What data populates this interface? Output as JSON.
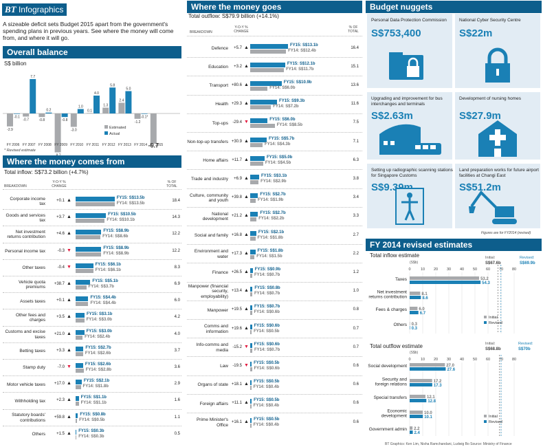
{
  "logo": {
    "brand": "BT",
    "label": "Infographics"
  },
  "intro": "A sizeable deficit sets Budget 2015 apart from the government's spending plans in previous years. See where the money will come from, and where it will go.",
  "overall": {
    "title": "Overall balance",
    "unit": "S$ billion",
    "note": "* Revised estimate",
    "legend": [
      "Estimated",
      "Actual"
    ]
  },
  "comes": {
    "title": "Where the money comes from",
    "total": "Total inflow: S$73.2 billion (+4.7%)",
    "headers": [
      "BREAKDOWN",
      "Y-O-Y % CHANGE",
      "% OF TOTAL"
    ],
    "rows": [
      {
        "label": "Corporate income tax",
        "chg": "+0.1",
        "dir": "up",
        "fy15": 13.5,
        "fy14": 13.5,
        "t15": "FY15: S$13.5b",
        "t14": "FY14: S$13.5b",
        "pct": "18.4"
      },
      {
        "label": "Goods and services tax",
        "chg": "+3.7",
        "dir": "up",
        "fy15": 10.5,
        "fy14": 10.1,
        "t15": "FY15: S$10.5b",
        "t14": "FY14: S$10.1b",
        "pct": "14.3"
      },
      {
        "label": "Net investment returns contribution",
        "chg": "+4.6",
        "dir": "up",
        "fy15": 8.9,
        "fy14": 8.6,
        "t15": "FY15: S$8.9b",
        "t14": "FY14: S$8.6b",
        "pct": "12.2"
      },
      {
        "label": "Personal income tax",
        "chg": "-0.3",
        "dir": "down",
        "fy15": 8.9,
        "fy14": 8.9,
        "t15": "FY15: S$8.9b",
        "t14": "FY14: S$8.9b",
        "pct": "12.2"
      },
      {
        "label": "Other taxes",
        "chg": "-0.4",
        "dir": "down",
        "fy15": 6.1,
        "fy14": 6.1,
        "t15": "FY15: S$6.1b",
        "t14": "FY14: S$6.1b",
        "pct": "8.3"
      },
      {
        "label": "Vehicle quota premiums",
        "chg": "+38.7",
        "dir": "up",
        "fy15": 5.1,
        "fy14": 3.7,
        "t15": "FY15: S$5.1b",
        "t14": "FY14: S$3.7b",
        "pct": "6.9"
      },
      {
        "label": "Assets taxes",
        "chg": "+0.1",
        "dir": "up",
        "fy15": 4.4,
        "fy14": 4.4,
        "t15": "FY15: S$4.4b",
        "t14": "FY14: S$4.4b",
        "pct": "6.0"
      },
      {
        "label": "Other fees and charges",
        "chg": "+3.5",
        "dir": "up",
        "fy15": 3.1,
        "fy14": 3.0,
        "t15": "FY15: S$3.1b",
        "t14": "FY14: S$3.0b",
        "pct": "4.2"
      },
      {
        "label": "Customs and excise taxes",
        "chg": "+21.0",
        "dir": "up",
        "fy15": 3.0,
        "fy14": 2.4,
        "t15": "FY15: S$3.0b",
        "t14": "FY14: S$2.4b",
        "pct": "4.0"
      },
      {
        "label": "Betting taxes",
        "chg": "+3.3",
        "dir": "up",
        "fy15": 2.7,
        "fy14": 2.6,
        "t15": "FY15: S$2.7b",
        "t14": "FY14: S$2.6b",
        "pct": "3.7"
      },
      {
        "label": "Stamp duty",
        "chg": "-7.0",
        "dir": "down",
        "fy15": 2.6,
        "fy14": 2.8,
        "t15": "FY15: S$2.6b",
        "t14": "FY14: S$2.8b",
        "pct": "3.6"
      },
      {
        "label": "Motor vehicle taxes",
        "chg": "+17.0",
        "dir": "up",
        "fy15": 2.1,
        "fy14": 1.8,
        "t15": "FY15: S$2.1b",
        "t14": "FY14: S$1.8b",
        "pct": "2.9"
      },
      {
        "label": "Withholding tax",
        "chg": "+2.3",
        "dir": "up",
        "fy15": 1.1,
        "fy14": 1.1,
        "t15": "FY15: S$1.1b",
        "t14": "FY14: S$1.1b",
        "pct": "1.6"
      },
      {
        "label": "Statutory boards' contributions",
        "chg": "+59.8",
        "dir": "up",
        "fy15": 0.8,
        "fy14": 0.5,
        "t15": "FY15: S$0.8b",
        "t14": "FY14: S$0.5b",
        "pct": "1.1"
      },
      {
        "label": "Others",
        "chg": "+1.5",
        "dir": "up",
        "fy15": 0.3,
        "fy14": 0.3,
        "t15": "FY15: S$0.3b",
        "t14": "FY14: S$0.3b",
        "pct": "0.5"
      }
    ]
  },
  "goes": {
    "title": "Where the money goes",
    "total": "Total outflow: S$79.9 billion (+14.1%)",
    "headers": [
      "BREAKDOWN",
      "Y-O-Y % CHANGE",
      "% OF TOTAL"
    ],
    "rows": [
      {
        "label": "Defence",
        "chg": "+5.7",
        "dir": "up",
        "fy15": 13.1,
        "fy14": 12.4,
        "t15": "FY15: S$13.1b",
        "t14": "FY14: S$12.4b",
        "pct": "16.4"
      },
      {
        "label": "Education",
        "chg": "+3.2",
        "dir": "up",
        "fy15": 12.1,
        "fy14": 11.7,
        "t15": "FY15: S$12.1b",
        "t14": "FY14: S$11.7b",
        "pct": "15.1"
      },
      {
        "label": "Transport",
        "chg": "+80.6",
        "dir": "up",
        "fy15": 10.9,
        "fy14": 6.0,
        "t15": "FY15: S$10.9b",
        "t14": "FY14: S$6.0b",
        "pct": "13.6"
      },
      {
        "label": "Health",
        "chg": "+29.3",
        "dir": "up",
        "fy15": 9.3,
        "fy14": 7.2,
        "t15": "FY15: S$9.3b",
        "t14": "FY14: S$7.2b",
        "pct": "11.6"
      },
      {
        "label": "Top-ups",
        "chg": "-29.4",
        "dir": "down",
        "fy15": 6.0,
        "fy14": 8.5,
        "t15": "FY15: S$6.0b",
        "t14": "FY14: S$8.5b",
        "pct": "7.5"
      },
      {
        "label": "Non-top-up transfers",
        "chg": "+30.9",
        "dir": "up",
        "fy15": 5.7,
        "fy14": 4.3,
        "t15": "FY15: S$5.7b",
        "t14": "FY14: S$4.3b",
        "pct": "7.1"
      },
      {
        "label": "Home affairs",
        "chg": "+11.7",
        "dir": "up",
        "fy15": 5.0,
        "fy14": 4.5,
        "t15": "FY15: S$5.0b",
        "t14": "FY14: S$4.5b",
        "pct": "6.3"
      },
      {
        "label": "Trade and industry",
        "chg": "+6.9",
        "dir": "up",
        "fy15": 3.1,
        "fy14": 2.9,
        "t15": "FY15: S$3.1b",
        "t14": "FY14: S$2.9b",
        "pct": "3.8"
      },
      {
        "label": "Culture, community and youth",
        "chg": "+39.8",
        "dir": "up",
        "fy15": 2.7,
        "fy14": 1.9,
        "t15": "FY15: S$2.7b",
        "t14": "FY14: S$1.9b",
        "pct": "3.4"
      },
      {
        "label": "National development",
        "chg": "+21.2",
        "dir": "up",
        "fy15": 2.7,
        "fy14": 2.2,
        "t15": "FY15: S$2.7b",
        "t14": "FY14: S$2.2b",
        "pct": "3.3"
      },
      {
        "label": "Social and family",
        "chg": "+16.8",
        "dir": "up",
        "fy15": 2.1,
        "fy14": 1.8,
        "t15": "FY15: S$2.1b",
        "t14": "FY14: S$1.8b",
        "pct": "2.7"
      },
      {
        "label": "Environment and water",
        "chg": "+17.3",
        "dir": "up",
        "fy15": 1.8,
        "fy14": 1.5,
        "t15": "FY15: S$1.8b",
        "t14": "FY14: S$1.5b",
        "pct": "2.2"
      },
      {
        "label": "Finance",
        "chg": "+26.5",
        "dir": "up",
        "fy15": 0.9,
        "fy14": 0.7,
        "t15": "FY15: S$0.9b",
        "t14": "FY14: S$0.7b",
        "pct": "1.2"
      },
      {
        "label": "Manpower (financial security, employability)",
        "chg": "+13.4",
        "dir": "up",
        "fy15": 0.8,
        "fy14": 0.7,
        "t15": "FY15: S$0.8b",
        "t14": "FY14: S$0.7b",
        "pct": "1.0"
      },
      {
        "label": "Manpower",
        "chg": "+19.5",
        "dir": "up",
        "fy15": 0.7,
        "fy14": 0.6,
        "t15": "FY15: S$0.7b",
        "t14": "FY14: S$0.6b",
        "pct": "0.8"
      },
      {
        "label": "Comms and information",
        "chg": "+19.6",
        "dir": "up",
        "fy15": 0.6,
        "fy14": 0.5,
        "t15": "FY15: S$0.6b",
        "t14": "FY14: S$0.5b",
        "pct": "0.7"
      },
      {
        "label": "Info-comms and media",
        "chg": "-15.2",
        "dir": "down",
        "fy15": 0.6,
        "fy14": 0.7,
        "t15": "FY15: S$0.6b",
        "t14": "FY14: S$0.7b",
        "pct": "0.7"
      },
      {
        "label": "Law",
        "chg": "-19.5",
        "dir": "down",
        "fy15": 0.5,
        "fy14": 0.6,
        "t15": "FY15: S$0.5b",
        "t14": "FY14: S$0.6b",
        "pct": "0.6"
      },
      {
        "label": "Organs of state",
        "chg": "+18.1",
        "dir": "up",
        "fy15": 0.5,
        "fy14": 0.4,
        "t15": "FY15: S$0.5b",
        "t14": "FY14: S$0.4b",
        "pct": "0.6"
      },
      {
        "label": "Foreign affairs",
        "chg": "+11.1",
        "dir": "up",
        "fy15": 0.5,
        "fy14": 0.4,
        "t15": "FY15: S$0.5b",
        "t14": "FY14: S$0.4b",
        "pct": "0.6"
      },
      {
        "label": "Prime Minister's Office",
        "chg": "+16.1",
        "dir": "up",
        "fy15": 0.5,
        "fy14": 0.4,
        "t15": "FY15: S$0.5b",
        "t14": "FY14: S$0.4b",
        "pct": "0.6"
      }
    ]
  },
  "nuggets": {
    "title": "Budget nuggets",
    "items": [
      {
        "label": "Personal Data Protection Commission",
        "value": "S$753,400",
        "icon": "folder-lock-icon"
      },
      {
        "label": "National Cyber Security Centre",
        "value": "S$22m",
        "icon": "lock-icon"
      },
      {
        "label": "Upgrading and improvement for bus interchanges and terminals",
        "value": "S$2.63m",
        "icon": "bus-terminal-icon"
      },
      {
        "label": "Development of nursing homes",
        "value": "S$27.9m",
        "icon": "nursing-home-icon"
      },
      {
        "label": "Setting up radiographic scanning stations for Singapore Customs",
        "value": "S$9.39m",
        "icon": "body-scanner-icon"
      },
      {
        "label": "Land preparation works for future airport facilities at Changi East",
        "value": "S$51.2m",
        "icon": "excavator-icon"
      }
    ],
    "note": "Figures are for FY2014 (revised)"
  },
  "revised": {
    "title": "FY 2014 revised estimates",
    "legend": [
      "Initial",
      "Revised"
    ],
    "inflow": {
      "title": "Total inflow estimate",
      "unit": "(S$b)",
      "initial_label": "Initial:",
      "initial_value": "S$67.6b",
      "revised_label": "Revised:",
      "revised_value": "S$69.9b"
    },
    "outflow": {
      "title": "Total outflow estimate",
      "unit": "(S$b)",
      "initial_label": "Initial:",
      "initial_value": "S$68.8b",
      "revised_label": "Revised:",
      "revised_value": "S$70b"
    }
  },
  "credits": "BT Graphics: Ken Lim, Nisha Ramchandani, Ludwig Bo   Source: Ministry of Finance",
  "chart_data": [
    {
      "type": "bar",
      "title": "Overall balance",
      "ylabel": "S$ billion",
      "categories": [
        "FY 2006",
        "FY 2007",
        "FY 2008",
        "FY 2009",
        "FY 2010",
        "FY 2011",
        "FY 2012",
        "FY 2013",
        "FY 2014",
        "FY 2015"
      ],
      "series": [
        {
          "name": "Estimated",
          "values": [
            -2.9,
            -0.7,
            -0.8,
            -8.7,
            -3.0,
            0.1,
            1.3,
            2.4,
            -1.2,
            -6.7
          ]
        },
        {
          "name": "Actual",
          "values": [
            -0.1,
            7.7,
            0.2,
            -0.8,
            1.0,
            4.0,
            5.8,
            5.0,
            -0.1,
            null
          ]
        }
      ],
      "labels": [
        "-2.9",
        "-0.1",
        "-0.7",
        "7.7",
        "-0.8",
        "0.2",
        "-8.7",
        "-0.8",
        "-3.0",
        "1.0",
        "0.1",
        "4.0",
        "1.3",
        "5.8",
        "2.4",
        "5.0",
        "-1.2",
        "-0.1*",
        "-6.7"
      ]
    },
    {
      "type": "bar",
      "title": "Total inflow estimate",
      "xlim": [
        0,
        80
      ],
      "ticks": [
        "0",
        "10",
        "20",
        "30",
        "40",
        "50",
        "60",
        "70",
        "80"
      ],
      "categories": [
        "Taxes",
        "Net investment returns contribution",
        "Fees & charges",
        "Others"
      ],
      "series": [
        {
          "name": "Initial",
          "values": [
            53.2,
            8.1,
            6.0,
            0.3
          ]
        },
        {
          "name": "Revised",
          "values": [
            54.3,
            8.6,
            6.7,
            0.3
          ]
        }
      ]
    },
    {
      "type": "bar",
      "title": "Total outflow estimate",
      "xlim": [
        0,
        80
      ],
      "ticks": [
        "0",
        "10",
        "20",
        "30",
        "40",
        "50",
        "60",
        "70",
        "80"
      ],
      "categories": [
        "Social development",
        "Security and foreign relations",
        "Special transfers",
        "Economic development",
        "Government admin"
      ],
      "series": [
        {
          "name": "Initial",
          "values": [
            27.0,
            17.2,
            12.1,
            10.0,
            2.2
          ]
        },
        {
          "name": "Revised",
          "values": [
            27.6,
            17.3,
            12.8,
            10.1,
            2.4
          ]
        }
      ]
    }
  ]
}
